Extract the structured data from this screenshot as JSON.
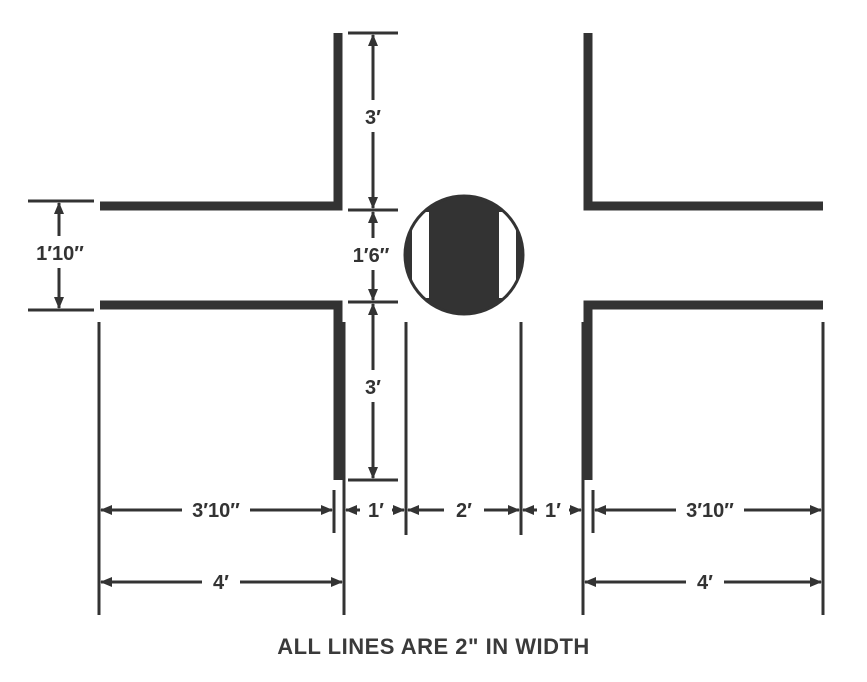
{
  "dimensions": {
    "arm_length": "3′",
    "center_gap": "1′6″",
    "arm_width": "1′10″",
    "inner_offset_left": "1′",
    "circle_width": "2′",
    "inner_offset_right": "1′",
    "arm_inner_left": "3′10″",
    "arm_inner_right": "3′10″",
    "arm_outer_left": "4′",
    "arm_outer_right": "4′"
  },
  "caption": "ALL LINES ARE 2\" IN WIDTH",
  "colors": {
    "ink": "#333333",
    "background": "#ffffff"
  }
}
